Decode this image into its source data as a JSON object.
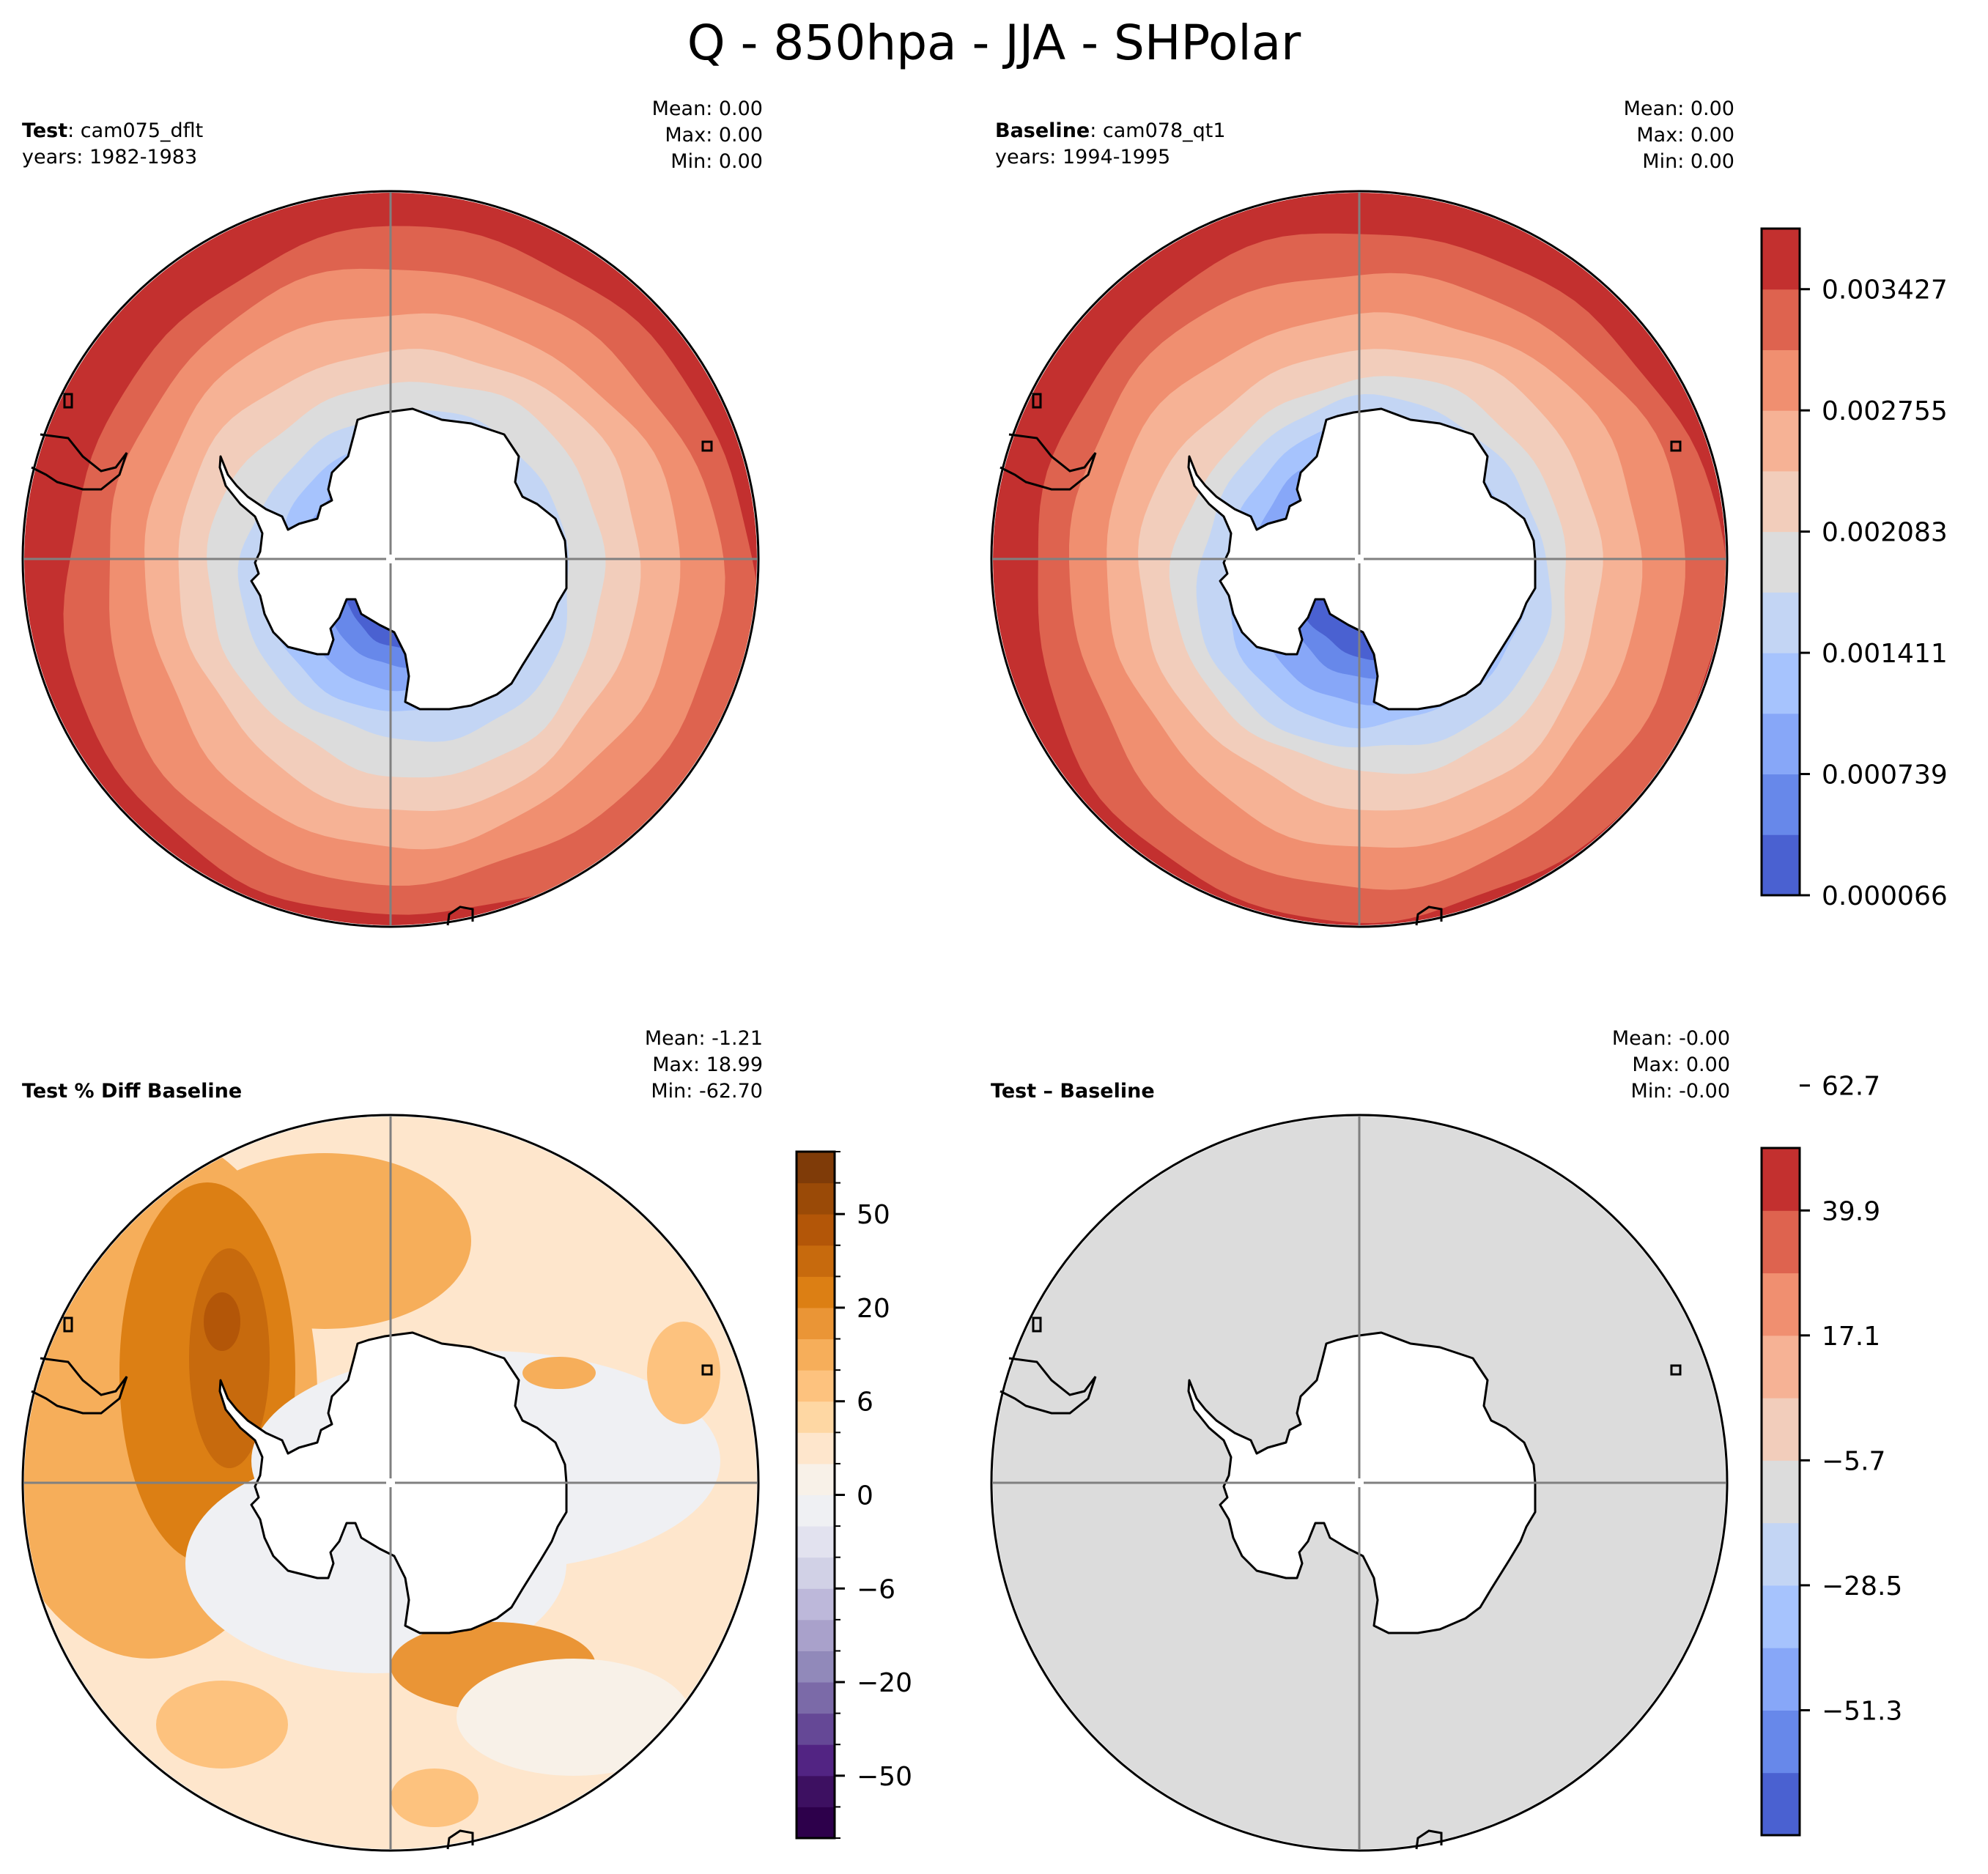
{
  "figure": {
    "title": "Q - 850hpa - JJA - SHPolar"
  },
  "chart_data": [
    {
      "type": "heatmap",
      "panel": "test",
      "projection": "south-polar-stereographic",
      "label_bold": "Test",
      "label_rest": ": cam075_dflt",
      "years": "years: 1982-1983",
      "stats": {
        "mean": "Mean:  0.00",
        "max": "Max:  0.00",
        "min": "Min:  0.00"
      },
      "colormap": "coolwarm",
      "field_description": "Specific humidity increases from ~0.0001 near the Antarctic coast to ~0.0035 at the domain edge",
      "levels_ref": "colorbar_main"
    },
    {
      "type": "heatmap",
      "panel": "baseline",
      "projection": "south-polar-stereographic",
      "label_bold": "Baseline",
      "label_rest": ": cam078_qt1",
      "years": "years: 1994-1995",
      "stats": {
        "mean": "Mean:  0.00",
        "max": "Max:  0.00",
        "min": "Min:  0.00"
      },
      "colormap": "coolwarm",
      "field_description": "Specific humidity increases from ~0.0001 near the Antarctic coast to ~0.0035 at the domain edge",
      "levels_ref": "colorbar_main"
    },
    {
      "type": "heatmap",
      "panel": "pct_diff",
      "projection": "south-polar-stereographic",
      "label_bold": "Test % Diff Baseline",
      "label_rest": "",
      "years": "",
      "stats": {
        "mean": "Mean: -1.21",
        "max": "Max: 18.99",
        "min": "Min: -62.70"
      },
      "colormap": "PuOr_r",
      "field_description": "Mostly positive (0-30%) with maximum west of the Antarctic Peninsula; near zero over the Indian/Pacific sectors",
      "levels_ref": "colorbar_pct"
    },
    {
      "type": "heatmap",
      "panel": "diff",
      "projection": "south-polar-stereographic",
      "label_bold": "Test – Baseline",
      "label_rest": "",
      "years": "",
      "stats": {
        "mean": "Mean: -0.00",
        "max": "Max:  0.00",
        "min": "Min: -0.00"
      },
      "colormap": "coolwarm",
      "field_description": "Uniform near-zero difference everywhere",
      "levels_ref": "colorbar_diff"
    }
  ],
  "colorbar_main": {
    "levels": [
      6.6e-05,
      0.000402,
      0.000739,
      0.001075,
      0.001411,
      0.001747,
      0.002083,
      0.002419,
      0.002755,
      0.003091,
      0.003427,
      0.003763
    ],
    "colors": [
      "#4a61d1",
      "#6788ea",
      "#87a7f8",
      "#a6c3fd",
      "#c3d5f4",
      "#dcdcdc",
      "#f2cdbb",
      "#f6b295",
      "#f08f70",
      "#de634f",
      "#c3302f"
    ],
    "tick_labels": [
      "0.000066",
      "0.000739",
      "0.001411",
      "0.002083",
      "0.002755",
      "0.003427"
    ],
    "tick_values": [
      6.6e-05,
      0.000739,
      0.001411,
      0.002083,
      0.002755,
      0.003427
    ]
  },
  "colorbar_pct": {
    "levels": [
      -100,
      -75,
      -50,
      -40,
      -30,
      -20,
      -15,
      -10,
      -6,
      -4,
      -2,
      0,
      2,
      4,
      6,
      10,
      15,
      20,
      30,
      40,
      50,
      75,
      100
    ],
    "colors": [
      "#2d004b",
      "#3d1061",
      "#522483",
      "#654896",
      "#7b6aa8",
      "#9189ba",
      "#a9a1cb",
      "#bdb8da",
      "#d1d1e6",
      "#e2e2ef",
      "#eff0f3",
      "#f8f1e8",
      "#fee6cc",
      "#fed7a3",
      "#fdc27e",
      "#f6ae5a",
      "#ea9536",
      "#dc7f14",
      "#c76a0d",
      "#b35608",
      "#9a4a07",
      "#7f3b08"
    ],
    "tick_labels": [
      "−50",
      "−20",
      "−6",
      "0",
      "6",
      "20",
      "50"
    ],
    "tick_values": [
      -50,
      -20,
      -6,
      0,
      6,
      20,
      50
    ]
  },
  "colorbar_diff": {
    "levels": [
      -74.1,
      -62.7,
      -51.3,
      -39.9,
      -28.5,
      -17.1,
      -5.7,
      5.7,
      17.1,
      28.5,
      39.9,
      51.3,
      62.7
    ],
    "colors": [
      "#4a61d1",
      "#6788ea",
      "#87a7f8",
      "#a6c3fd",
      "#c3d5f4",
      "#dcdcdc",
      "#f2cdbb",
      "#f6b295",
      "#f08f70",
      "#de634f",
      "#c3302f"
    ],
    "tick_labels": [
      "−51.3",
      "−28.5",
      "−5.7",
      "17.1",
      "39.9",
      "62.7"
    ],
    "tick_values": [
      -51.3,
      -28.5,
      -5.7,
      17.1,
      39.9,
      62.7
    ]
  }
}
